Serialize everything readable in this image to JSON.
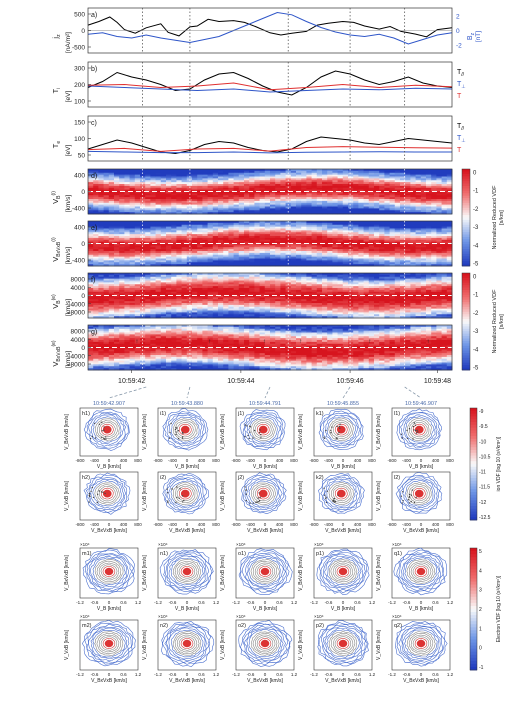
{
  "chart_data": [
    {
      "type": "line",
      "panel_label": "a)",
      "ylabel": "j",
      "ylabel_sub": "z",
      "yunit": "[nA/m²]",
      "yticks": [
        "500",
        "0",
        "-500"
      ],
      "ylim": [
        -500,
        500
      ],
      "right_label": "B",
      "right_label_sub": "z",
      "right_unit": "[nT]",
      "right_ticks": [
        "2",
        "0",
        "-2"
      ],
      "right_ylim": [
        -3,
        3
      ],
      "series": [
        {
          "name": "j_z",
          "color": "#000000",
          "x": [
            0,
            0.03,
            0.06,
            0.08,
            0.1,
            0.13,
            0.16,
            0.2,
            0.22,
            0.25,
            0.28,
            0.3,
            0.33,
            0.36,
            0.4,
            0.43,
            0.46,
            0.5,
            0.53,
            0.56,
            0.6,
            0.63,
            0.66,
            0.7,
            0.73,
            0.76,
            0.8,
            0.83,
            0.86,
            0.9,
            0.93,
            0.96,
            1.0
          ],
          "y": [
            120,
            200,
            300,
            180,
            20,
            -60,
            60,
            150,
            -40,
            -120,
            80,
            100,
            250,
            200,
            220,
            180,
            90,
            -50,
            -100,
            -60,
            -20,
            120,
            160,
            200,
            180,
            100,
            30,
            90,
            -20,
            -80,
            -140,
            20,
            60
          ]
        },
        {
          "name": "B_z",
          "color": "#2e55c8",
          "x": [
            0,
            0.04,
            0.08,
            0.12,
            0.16,
            0.2,
            0.24,
            0.28,
            0.32,
            0.36,
            0.4,
            0.44,
            0.48,
            0.52,
            0.56,
            0.6,
            0.64,
            0.68,
            0.72,
            0.76,
            0.8,
            0.84,
            0.88,
            0.92,
            0.96,
            1.0
          ],
          "y": [
            -0.5,
            -0.3,
            -0.8,
            -1.0,
            -0.6,
            -1.0,
            -1.3,
            -1.6,
            -1.2,
            -0.8,
            0.0,
            0.8,
            1.6,
            2.4,
            2.1,
            1.2,
            0.4,
            -0.2,
            -0.6,
            -0.8,
            -0.5,
            -1.0,
            -1.8,
            -1.2,
            -0.6,
            -0.3
          ]
        }
      ]
    },
    {
      "type": "line",
      "panel_label": "b)",
      "ylabel": "T",
      "ylabel_sub": "i",
      "yunit": "[eV]",
      "yticks": [
        "300",
        "200",
        "100"
      ],
      "ylim": [
        100,
        400
      ],
      "legend": [
        "T",
        "T",
        "T"
      ],
      "legend_subs": [
        "//",
        "⊥",
        ""
      ],
      "series": [
        {
          "name": "T_par",
          "color": "#000000",
          "x": [
            0,
            0.04,
            0.08,
            0.12,
            0.16,
            0.2,
            0.24,
            0.28,
            0.32,
            0.36,
            0.4,
            0.44,
            0.48,
            0.52,
            0.56,
            0.6,
            0.64,
            0.68,
            0.72,
            0.76,
            0.8,
            0.84,
            0.88,
            0.92,
            0.96,
            1.0
          ],
          "y": [
            230,
            270,
            330,
            300,
            280,
            250,
            210,
            220,
            280,
            320,
            330,
            290,
            240,
            200,
            180,
            230,
            300,
            340,
            320,
            280,
            250,
            270,
            300,
            260,
            240,
            230
          ]
        },
        {
          "name": "T_perp",
          "color": "#2e55c8",
          "x": [
            0,
            0.1,
            0.2,
            0.3,
            0.4,
            0.5,
            0.6,
            0.7,
            0.8,
            0.9,
            1.0
          ],
          "y": [
            240,
            230,
            220,
            210,
            220,
            200,
            210,
            220,
            215,
            225,
            220
          ]
        },
        {
          "name": "T",
          "color": "#e03030",
          "x": [
            0,
            0.1,
            0.2,
            0.3,
            0.4,
            0.5,
            0.6,
            0.7,
            0.8,
            0.9,
            1.0
          ],
          "y": [
            245,
            250,
            230,
            240,
            260,
            215,
            230,
            250,
            230,
            245,
            235
          ]
        }
      ]
    },
    {
      "type": "line",
      "panel_label": "c)",
      "ylabel": "T",
      "ylabel_sub": "e",
      "yunit": "[eV]",
      "yticks": [
        "150",
        "100",
        "50"
      ],
      "ylim": [
        0,
        150
      ],
      "legend": [
        "T",
        "T",
        "T"
      ],
      "legend_subs": [
        "//",
        "⊥",
        ""
      ],
      "series": [
        {
          "name": "T_par",
          "color": "#000000",
          "x": [
            0,
            0.04,
            0.08,
            0.12,
            0.16,
            0.2,
            0.24,
            0.28,
            0.32,
            0.36,
            0.4,
            0.44,
            0.48,
            0.52,
            0.56,
            0.6,
            0.64,
            0.68,
            0.72,
            0.76,
            0.8,
            0.84,
            0.88,
            0.92,
            0.96,
            1.0
          ],
          "y": [
            40,
            55,
            70,
            60,
            45,
            30,
            25,
            35,
            55,
            65,
            60,
            45,
            35,
            30,
            40,
            65,
            80,
            75,
            70,
            60,
            55,
            65,
            75,
            70,
            65,
            60
          ]
        },
        {
          "name": "T_perp",
          "color": "#2e55c8",
          "x": [
            0,
            0.1,
            0.2,
            0.3,
            0.4,
            0.5,
            0.6,
            0.7,
            0.8,
            0.9,
            1.0
          ],
          "y": [
            32,
            30,
            28,
            28,
            30,
            27,
            29,
            30,
            31,
            30,
            30
          ]
        },
        {
          "name": "T",
          "color": "#e03030",
          "x": [
            0,
            0.1,
            0.2,
            0.3,
            0.4,
            0.5,
            0.6,
            0.7,
            0.8,
            0.9,
            1.0
          ],
          "y": [
            38,
            42,
            32,
            40,
            42,
            33,
            45,
            48,
            46,
            44,
            43
          ]
        }
      ]
    },
    {
      "type": "heatmap",
      "panel_label": "d)",
      "ylabel": "V",
      "ylabel_sub": "B",
      "ylabel_sup": "(i)",
      "yunit": "[km/s]",
      "yticks": [
        "400",
        "0",
        "-400"
      ],
      "ylim": [
        -600,
        600
      ]
    },
    {
      "type": "heatmap",
      "panel_label": "e)",
      "ylabel": "V",
      "ylabel_sub": "BxVxB",
      "ylabel_sup": "(i)",
      "yunit": "[km/s]",
      "yticks": [
        "400",
        "0",
        "-400"
      ],
      "ylim": [
        -600,
        600
      ]
    },
    {
      "type": "heatmap",
      "panel_label": "f)",
      "ylabel": "V",
      "ylabel_sub": "B",
      "ylabel_sup": "(e)",
      "yunit": "[km/s]",
      "yticks": [
        "8000",
        "4000",
        "0",
        "-4000",
        "-8000"
      ],
      "ylim": [
        -10000,
        10000
      ]
    },
    {
      "type": "heatmap",
      "panel_label": "g)",
      "ylabel": "V",
      "ylabel_sub": "BxVxB",
      "ylabel_sup": "(e)",
      "yunit": "[km/s]",
      "yticks": [
        "8000",
        "4000",
        "0",
        "-4000",
        "-8000"
      ],
      "ylim": [
        -10000,
        10000
      ]
    }
  ],
  "time_ticks": [
    "10:59:42",
    "10:59:44",
    "10:59:46",
    "10:59:48"
  ],
  "colorbar_ion": {
    "label": "Normalized Reduced VDF",
    "unit": "[s/km]",
    "ticks": [
      "0",
      "-1",
      "-2",
      "-3",
      "-4",
      "-5"
    ]
  },
  "colorbar_electron": {
    "label": "Normalized Reduced VDF",
    "unit": "[s/km]",
    "ticks": [
      "0",
      "-1",
      "-2",
      "-3",
      "-4",
      "-5"
    ]
  },
  "snapshot_times": [
    "10:59:42.907",
    "10:59:43.880",
    "10:59:44.791",
    "10:59:45.855",
    "10:59:46.907"
  ],
  "ion_row1_labels": [
    "h1)",
    "i1)",
    "j1)",
    "k1)",
    "l1)"
  ],
  "ion_row2_labels": [
    "h2)",
    "i2)",
    "j2)",
    "k2)",
    "l2)"
  ],
  "ele_row1_labels": [
    "m1)",
    "n1)",
    "o1)",
    "p1)",
    "q1)"
  ],
  "ele_row2_labels": [
    "m2)",
    "n2)",
    "o2)",
    "p2)",
    "q2)"
  ],
  "ion_axes": {
    "ylabel_row1": "V_BxVxB [km/s]",
    "xlabel_row1": "V_B [km/s]",
    "ylabel_row2": "V_VxB [km/s]",
    "xlabel_row2": "V_BxVxB [km/s]",
    "ticks": [
      "-800",
      "-400",
      "0",
      "400",
      "800"
    ]
  },
  "ele_axes": {
    "ylabel_row1": "V_BxVxB [km/s]",
    "xlabel_row1": "V_B [km/s]",
    "ylabel_row2": "V_VxB [km/s]",
    "xlabel_row2": "V_BxVxB [km/s]",
    "ticks": [
      "-1.2",
      "-0.6",
      "0",
      "0.6",
      "1.2"
    ],
    "multiplier": "×10⁴"
  },
  "colorbar_ion_vdf": {
    "label": "ion VDF [log 10 (s³/km⁶)]",
    "ticks": [
      "-9",
      "-9.5",
      "-10",
      "-10.5",
      "-11",
      "-11.5",
      "-12",
      "-12.5"
    ]
  },
  "colorbar_ele_vdf": {
    "label": "Electron VDF [log 10 (s³/km⁶)]",
    "ticks": [
      "5",
      "4",
      "3",
      "2",
      "1",
      "0",
      "-1"
    ]
  }
}
